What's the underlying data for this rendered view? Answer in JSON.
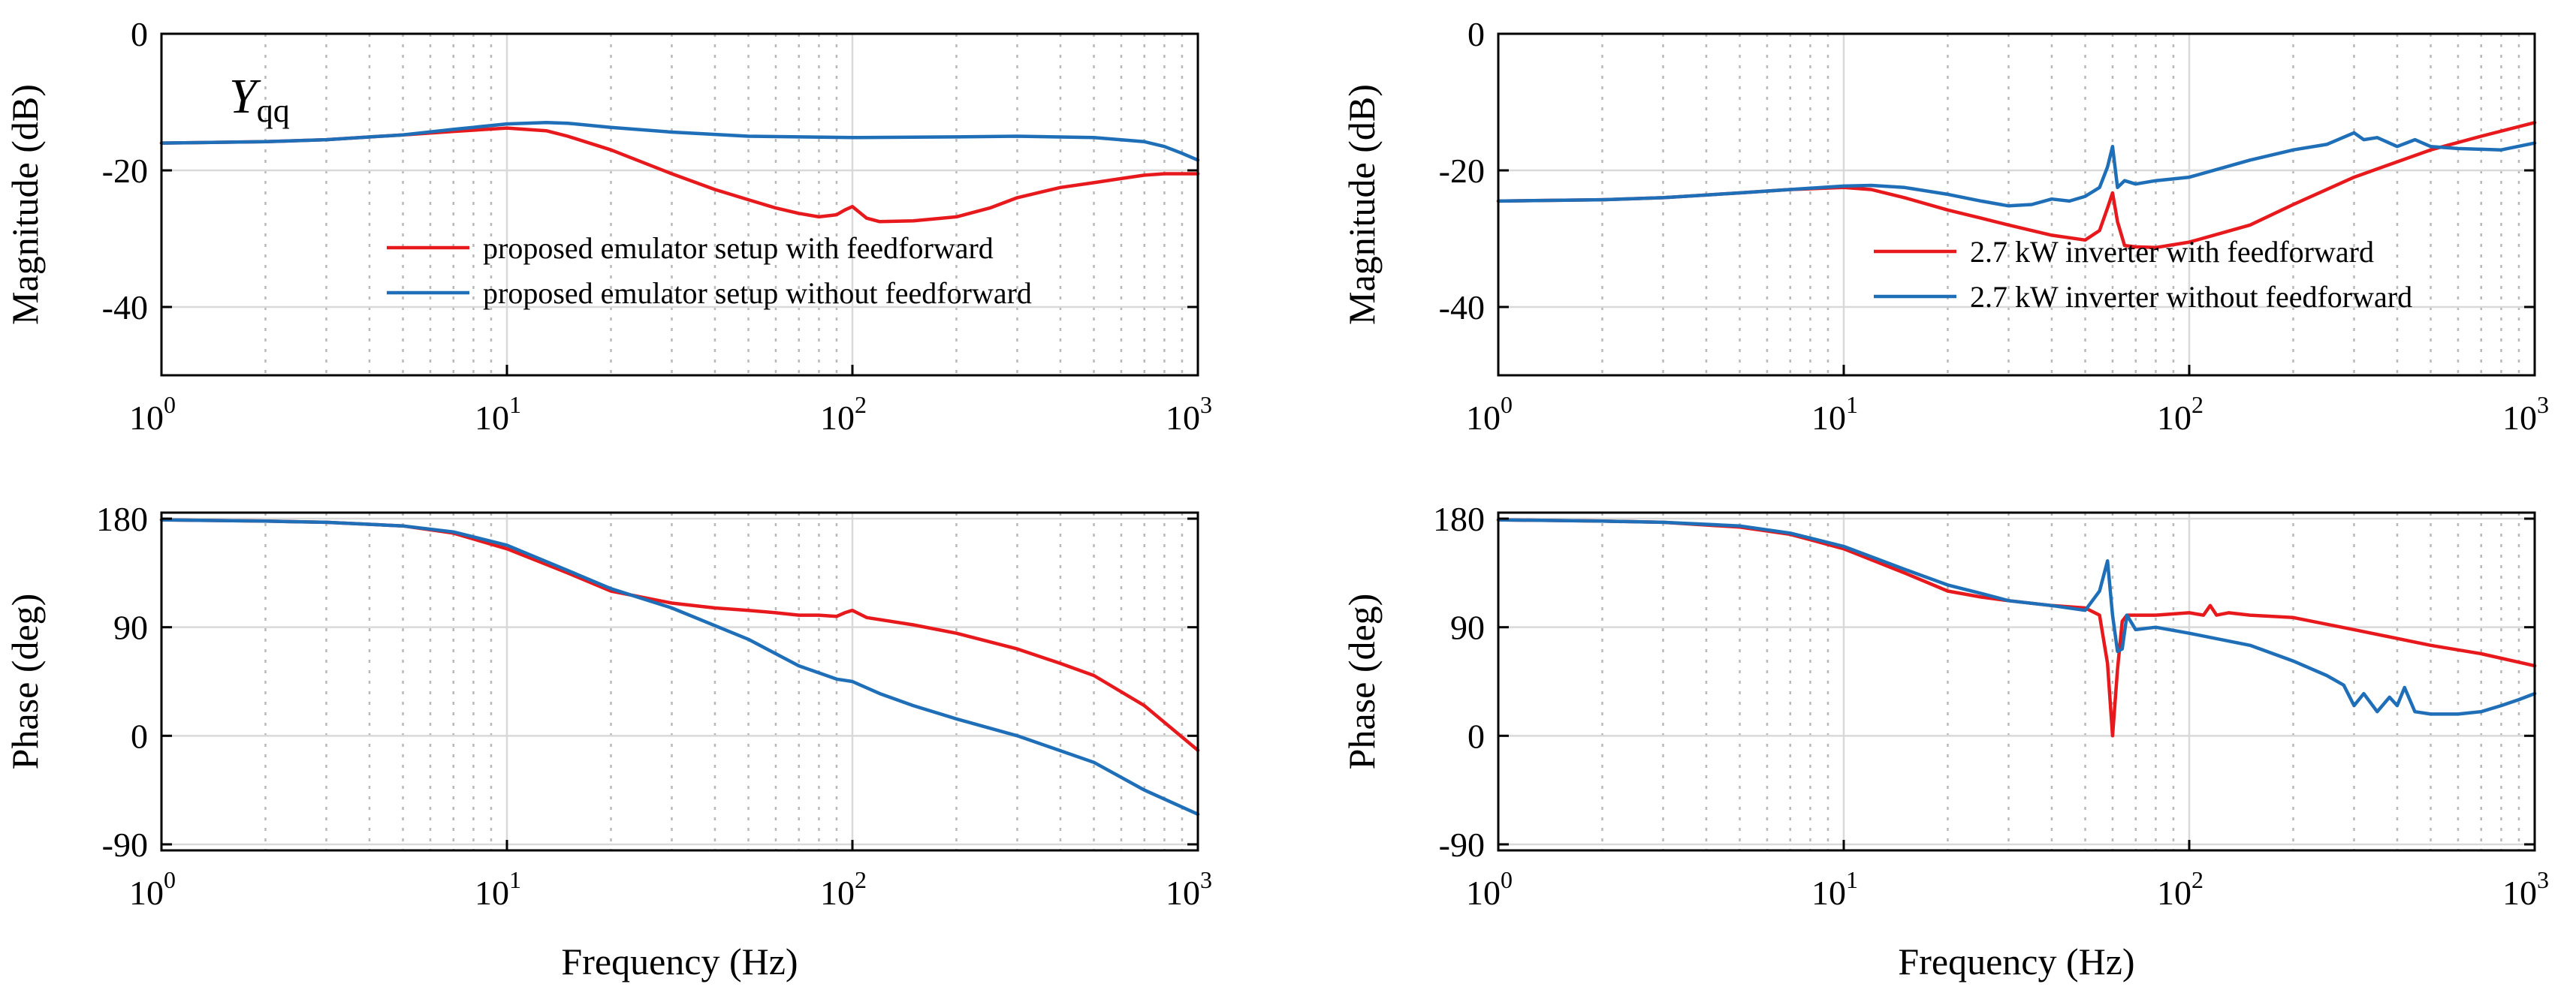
{
  "figure": {
    "colors": {
      "red": "#e8191c",
      "blue": "#1f6fb8"
    }
  },
  "chart_data": [
    {
      "id": "mag-left",
      "type": "line",
      "xscale": "log",
      "xlim": [
        1,
        1000
      ],
      "ylim": [
        -50,
        0
      ],
      "yticks": [
        0,
        -20,
        -40
      ],
      "ytick_labels": [
        "0",
        "-20",
        "-40"
      ],
      "xtick_labels": [
        {
          "base": "10",
          "exp": "0"
        },
        {
          "base": "10",
          "exp": "1"
        },
        {
          "base": "10",
          "exp": "2"
        },
        {
          "base": "10",
          "exp": "3"
        }
      ],
      "xlabel": "",
      "ylabel": "Magnitude (dB)",
      "annotation": {
        "main": "Y",
        "sub": "qq"
      },
      "legend_position": "lower-right",
      "series": [
        {
          "name": "proposed emulator setup with feedforward",
          "color": "#e8191c",
          "x": [
            1,
            2,
            3,
            5,
            7,
            10,
            13,
            15,
            20,
            30,
            40,
            50,
            60,
            70,
            80,
            90,
            95,
            100,
            110,
            120,
            150,
            200,
            250,
            300,
            400,
            500,
            600,
            700,
            800,
            1000
          ],
          "y": [
            -16,
            -15.8,
            -15.5,
            -14.8,
            -14.3,
            -13.8,
            -14.2,
            -15,
            -17,
            -20.5,
            -22.8,
            -24.3,
            -25.5,
            -26.3,
            -26.8,
            -26.5,
            -25.8,
            -25.3,
            -27,
            -27.5,
            -27.4,
            -26.8,
            -25.5,
            -24,
            -22.5,
            -21.8,
            -21.2,
            -20.7,
            -20.5,
            -20.5
          ]
        },
        {
          "name": "proposed emulator setup without feedforward",
          "color": "#1f6fb8",
          "x": [
            1,
            2,
            3,
            5,
            7,
            10,
            13,
            15,
            20,
            30,
            50,
            100,
            200,
            300,
            500,
            700,
            800,
            900,
            1000
          ],
          "y": [
            -16,
            -15.8,
            -15.5,
            -14.8,
            -14,
            -13.2,
            -13,
            -13.1,
            -13.7,
            -14.4,
            -15,
            -15.2,
            -15.1,
            -15,
            -15.2,
            -15.8,
            -16.5,
            -17.5,
            -18.5
          ]
        }
      ]
    },
    {
      "id": "mag-right",
      "type": "line",
      "xscale": "log",
      "xlim": [
        1,
        1000
      ],
      "ylim": [
        -50,
        0
      ],
      "yticks": [
        0,
        -20,
        -40
      ],
      "ytick_labels": [
        "0",
        "-20",
        "-40"
      ],
      "xtick_labels": [
        {
          "base": "10",
          "exp": "0"
        },
        {
          "base": "10",
          "exp": "1"
        },
        {
          "base": "10",
          "exp": "2"
        },
        {
          "base": "10",
          "exp": "3"
        }
      ],
      "xlabel": "",
      "ylabel": "Magnitude (dB)",
      "legend_position": "lower-right",
      "series": [
        {
          "name": "2.7 kW inverter with feedforward",
          "color": "#e8191c",
          "x": [
            1,
            2,
            3,
            5,
            7,
            10,
            12,
            15,
            20,
            25,
            30,
            40,
            50,
            55,
            58,
            60,
            62,
            65,
            70,
            80,
            100,
            150,
            200,
            300,
            500,
            700,
            1000
          ],
          "y": [
            -24.5,
            -24.3,
            -24,
            -23.3,
            -22.8,
            -22.5,
            -22.8,
            -24,
            -25.8,
            -27,
            -28,
            -29.5,
            -30.2,
            -28.8,
            -25.5,
            -23.3,
            -27.5,
            -31,
            -31.2,
            -31.3,
            -30.5,
            -28,
            -25,
            -21,
            -17,
            -15,
            -13
          ]
        },
        {
          "name": "2.7 kW inverter without feedforward",
          "color": "#1f6fb8",
          "x": [
            1,
            2,
            3,
            5,
            7,
            10,
            12,
            15,
            20,
            25,
            30,
            35,
            40,
            45,
            50,
            55,
            58,
            60,
            62,
            65,
            70,
            80,
            100,
            150,
            200,
            250,
            300,
            320,
            350,
            400,
            450,
            500,
            600,
            800,
            1000
          ],
          "y": [
            -24.5,
            -24.3,
            -24,
            -23.3,
            -22.8,
            -22.3,
            -22.2,
            -22.5,
            -23.5,
            -24.5,
            -25.2,
            -25,
            -24.2,
            -24.5,
            -23.8,
            -22.5,
            -19.5,
            -16.5,
            -22.5,
            -21.5,
            -22,
            -21.5,
            -21,
            -18.5,
            -17,
            -16.2,
            -14.5,
            -15.5,
            -15.2,
            -16.5,
            -15.5,
            -16.5,
            -16.8,
            -17,
            -16
          ]
        }
      ]
    },
    {
      "id": "phase-left",
      "type": "line",
      "xscale": "log",
      "xlim": [
        1,
        1000
      ],
      "ylim": [
        -95,
        185
      ],
      "yticks": [
        180,
        90,
        0,
        -90
      ],
      "ytick_labels": [
        "180",
        "90",
        "0",
        "-90"
      ],
      "xtick_labels": [
        {
          "base": "10",
          "exp": "0"
        },
        {
          "base": "10",
          "exp": "1"
        },
        {
          "base": "10",
          "exp": "2"
        },
        {
          "base": "10",
          "exp": "3"
        }
      ],
      "xlabel": "Frequency (Hz)",
      "ylabel": "Phase (deg)",
      "series": [
        {
          "name": "proposed emulator setup with feedforward",
          "color": "#e8191c",
          "x": [
            1,
            2,
            3,
            5,
            7,
            10,
            15,
            20,
            30,
            40,
            50,
            60,
            70,
            80,
            90,
            95,
            100,
            110,
            150,
            200,
            300,
            400,
            500,
            700,
            1000
          ],
          "y": [
            179,
            178,
            177,
            174,
            168,
            155,
            135,
            120,
            110,
            106,
            104,
            102,
            100,
            100,
            99,
            102,
            104,
            98,
            92,
            85,
            72,
            60,
            50,
            25,
            -12
          ]
        },
        {
          "name": "proposed emulator setup without feedforward",
          "color": "#1f6fb8",
          "x": [
            1,
            2,
            3,
            5,
            7,
            10,
            15,
            20,
            30,
            50,
            70,
            90,
            100,
            120,
            150,
            200,
            300,
            500,
            700,
            1000
          ],
          "y": [
            179,
            178,
            177,
            174,
            169,
            158,
            137,
            122,
            106,
            80,
            58,
            47,
            45,
            35,
            25,
            14,
            0,
            -22,
            -45,
            -65
          ]
        }
      ]
    },
    {
      "id": "phase-right",
      "type": "line",
      "xscale": "log",
      "xlim": [
        1,
        1000
      ],
      "ylim": [
        -95,
        185
      ],
      "yticks": [
        180,
        90,
        0,
        -90
      ],
      "ytick_labels": [
        "180",
        "90",
        "0",
        "-90"
      ],
      "xtick_labels": [
        {
          "base": "10",
          "exp": "0"
        },
        {
          "base": "10",
          "exp": "1"
        },
        {
          "base": "10",
          "exp": "2"
        },
        {
          "base": "10",
          "exp": "3"
        }
      ],
      "xlabel": "Frequency (Hz)",
      "ylabel": "Phase (deg)",
      "series": [
        {
          "name": "2.7 kW inverter with feedforward",
          "color": "#e8191c",
          "x": [
            1,
            2,
            3,
            5,
            7,
            10,
            15,
            20,
            25,
            30,
            40,
            50,
            55,
            58,
            60,
            62,
            64,
            66,
            70,
            80,
            100,
            110,
            115,
            120,
            130,
            150,
            200,
            300,
            500,
            700,
            1000
          ],
          "y": [
            179,
            178,
            177,
            173,
            167,
            155,
            135,
            120,
            115,
            112,
            108,
            106,
            100,
            60,
            0,
            55,
            95,
            100,
            100,
            100,
            102,
            100,
            108,
            100,
            102,
            100,
            98,
            88,
            75,
            68,
            58
          ]
        },
        {
          "name": "2.7 kW inverter without feedforward",
          "color": "#1f6fb8",
          "x": [
            1,
            2,
            3,
            5,
            7,
            10,
            15,
            20,
            25,
            30,
            40,
            50,
            55,
            58,
            60,
            62,
            64,
            66,
            70,
            80,
            100,
            150,
            200,
            250,
            280,
            300,
            320,
            350,
            380,
            400,
            420,
            450,
            500,
            600,
            700,
            800,
            900,
            1000
          ],
          "y": [
            179,
            178,
            177,
            174,
            168,
            157,
            138,
            125,
            118,
            112,
            108,
            104,
            120,
            145,
            100,
            70,
            72,
            100,
            88,
            90,
            85,
            75,
            62,
            50,
            42,
            25,
            35,
            20,
            32,
            25,
            40,
            20,
            18,
            18,
            20,
            25,
            30,
            35
          ]
        }
      ]
    }
  ]
}
